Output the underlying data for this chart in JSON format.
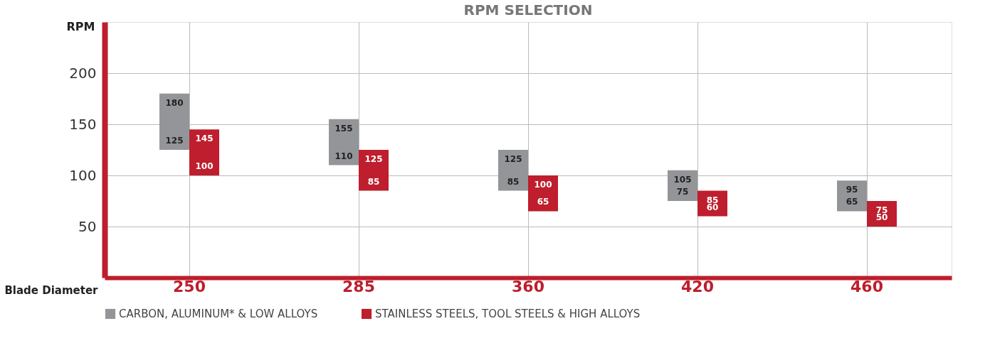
{
  "chart_data": {
    "type": "bar",
    "title": "RPM SELECTION",
    "xlabel": "Blade Diameter",
    "ylabel": "RPM",
    "categories": [
      "250",
      "285",
      "360",
      "420",
      "460"
    ],
    "series": [
      {
        "name": "CARBON, ALUMINUM* & LOW ALLOYS",
        "color": "#939598",
        "base": [
          125,
          110,
          85,
          75,
          65
        ],
        "values": [
          55,
          45,
          40,
          30,
          30
        ]
      },
      {
        "name": "STAINLESS STEELS, TOOL STEELS & HIGH ALLOYS",
        "color": "#be1e2d",
        "base": [
          100,
          85,
          65,
          60,
          50
        ],
        "values": [
          45,
          40,
          35,
          25,
          25
        ]
      }
    ],
    "ylim": [
      0,
      250
    ],
    "yticks": [
      50,
      100,
      150,
      200
    ],
    "grid": true,
    "legend": "bottom",
    "annotations": [
      "180",
      "125",
      "145",
      "100",
      "155",
      "110",
      "125",
      "85",
      "125",
      "85",
      "100",
      "65",
      "105",
      "75",
      "85",
      "60",
      "95",
      "65",
      "75",
      "50"
    ]
  }
}
